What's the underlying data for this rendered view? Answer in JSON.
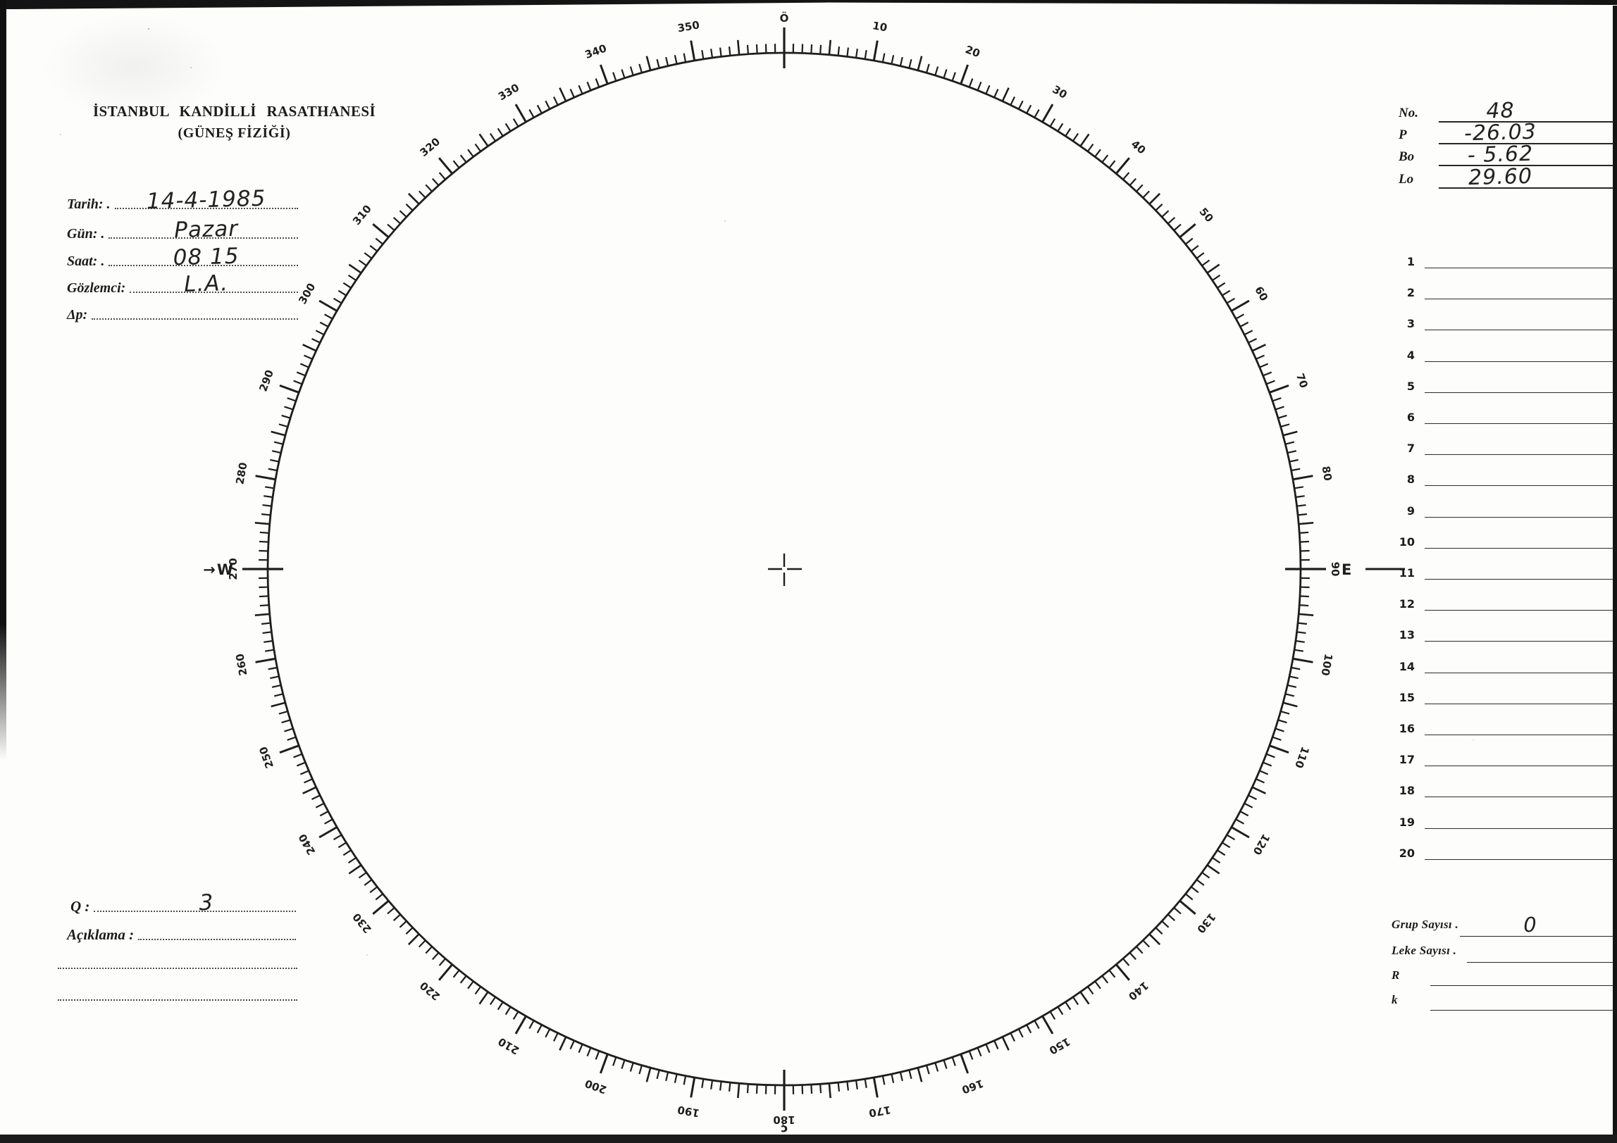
{
  "page_bg": "#fdfdfc",
  "ink_color": "#1c1c1c",
  "header": {
    "title_line1": "İSTANBUL KANDİLLİ RASATHANESİ",
    "title_line2": "(GÜNEŞ FİZİĞİ)"
  },
  "observation_fields": [
    {
      "label": "Tarih: .",
      "value": "14-4-1985"
    },
    {
      "label": "Gün: .",
      "value": "Pazar"
    },
    {
      "label": "Saat: .",
      "value": "08 15"
    },
    {
      "label": "Gözlemci:",
      "value": "L.A."
    },
    {
      "label": "Δp:",
      "value": ""
    }
  ],
  "quality": {
    "label": "Q :",
    "value": "3"
  },
  "remarks": {
    "label": "Açıklama :"
  },
  "ephemeris": [
    {
      "label": "No.",
      "value": "48"
    },
    {
      "label": "P",
      "value": "-26.03"
    },
    {
      "label": "Bo",
      "value": "- 5.62"
    },
    {
      "label": "Lo",
      "value": "29.60"
    }
  ],
  "spot_list": [
    "1",
    "2",
    "3",
    "4",
    "5",
    "6",
    "7",
    "8",
    "9",
    "10",
    "11",
    "12",
    "13",
    "14",
    "15",
    "16",
    "17",
    "18",
    "19",
    "20"
  ],
  "summary": [
    {
      "label": "Grup Sayısı .",
      "value": "0"
    },
    {
      "label": "Leke Sayısı .",
      "value": ""
    },
    {
      "label": "R",
      "value": ""
    },
    {
      "label": "k",
      "value": ""
    }
  ],
  "dial": {
    "degree_labels": [
      "Ö",
      "10",
      "20",
      "30",
      "40",
      "50",
      "60",
      "70",
      "80",
      "90",
      "100",
      "110",
      "120",
      "130",
      "140",
      "150",
      "160",
      "170",
      "180",
      "190",
      "200",
      "210",
      "220",
      "230",
      "240",
      "250",
      "260",
      "270",
      "280",
      "290",
      "300",
      "310",
      "320",
      "330",
      "340",
      "350"
    ],
    "west_marker": "→W",
    "east_marker": "E",
    "south_glyph": "ç"
  }
}
